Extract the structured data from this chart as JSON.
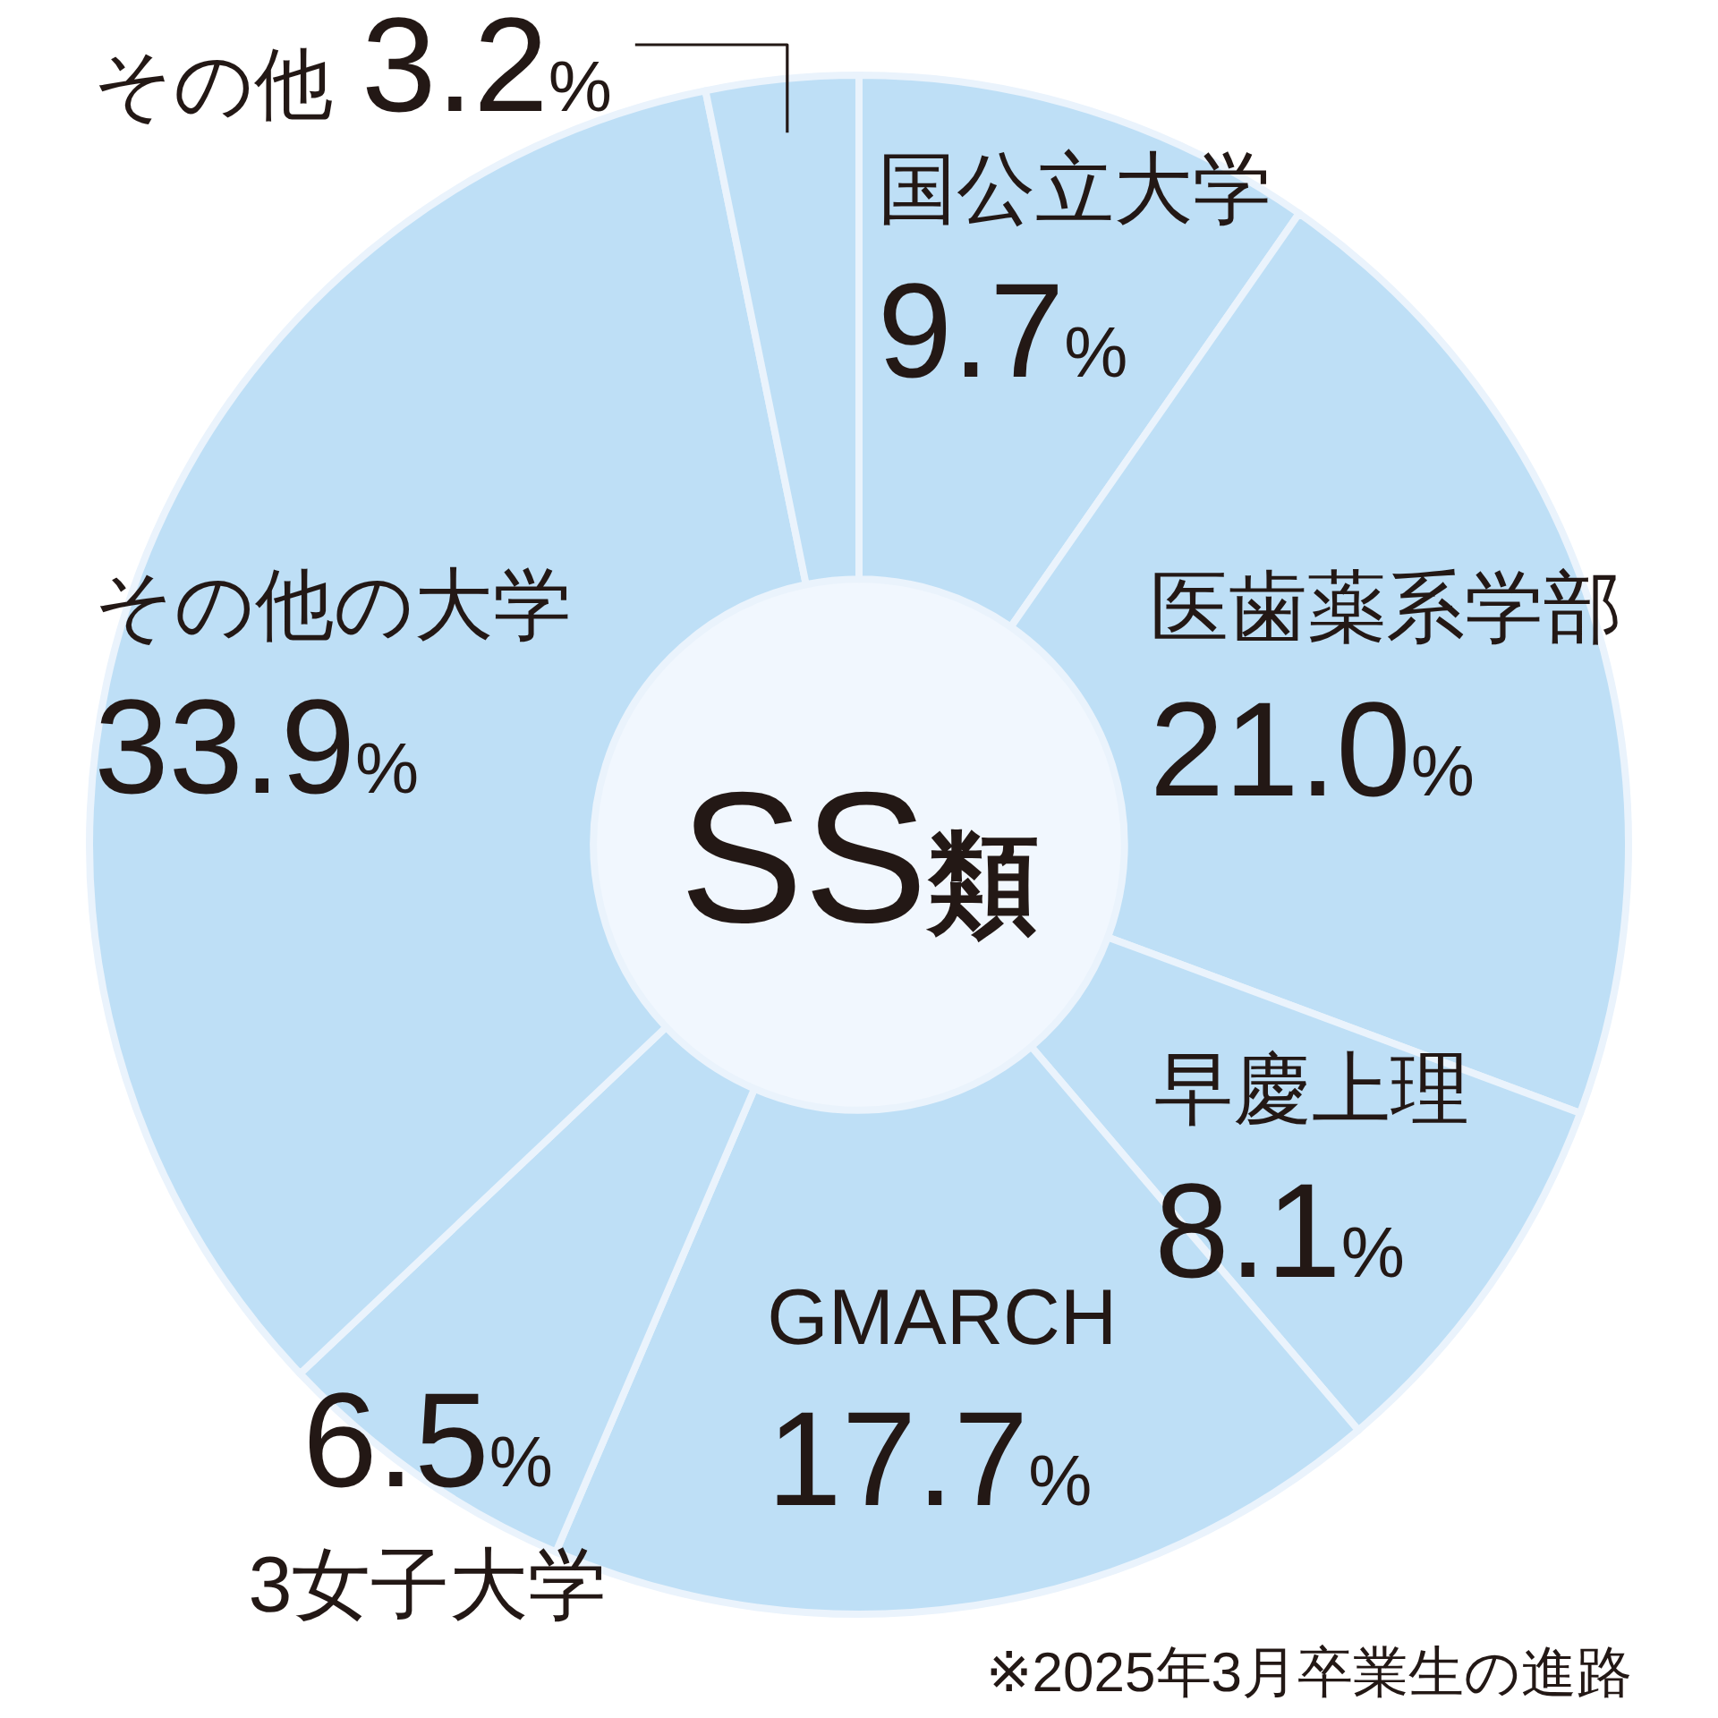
{
  "chart_data": {
    "type": "donut",
    "title": "SS類",
    "categories": [
      "国公立大学",
      "医歯薬系学部",
      "早慶上理",
      "GMARCH",
      "3女子大学",
      "その他の大学",
      "その他"
    ],
    "values": [
      9.7,
      21.0,
      8.1,
      17.7,
      6.5,
      33.9,
      3.2
    ],
    "value_labels": [
      "9.7%",
      "21.0%",
      "8.1%",
      "17.7%",
      "6.5%",
      "33.9%",
      "3.2%"
    ],
    "colors": [
      "#bedff6",
      "#bedff6",
      "#bedff6",
      "#bedff6",
      "#bedff6",
      "#bedff6",
      "#bedff6"
    ],
    "annotations": [
      "※2025年3月卒業生の進路"
    ]
  }
}
